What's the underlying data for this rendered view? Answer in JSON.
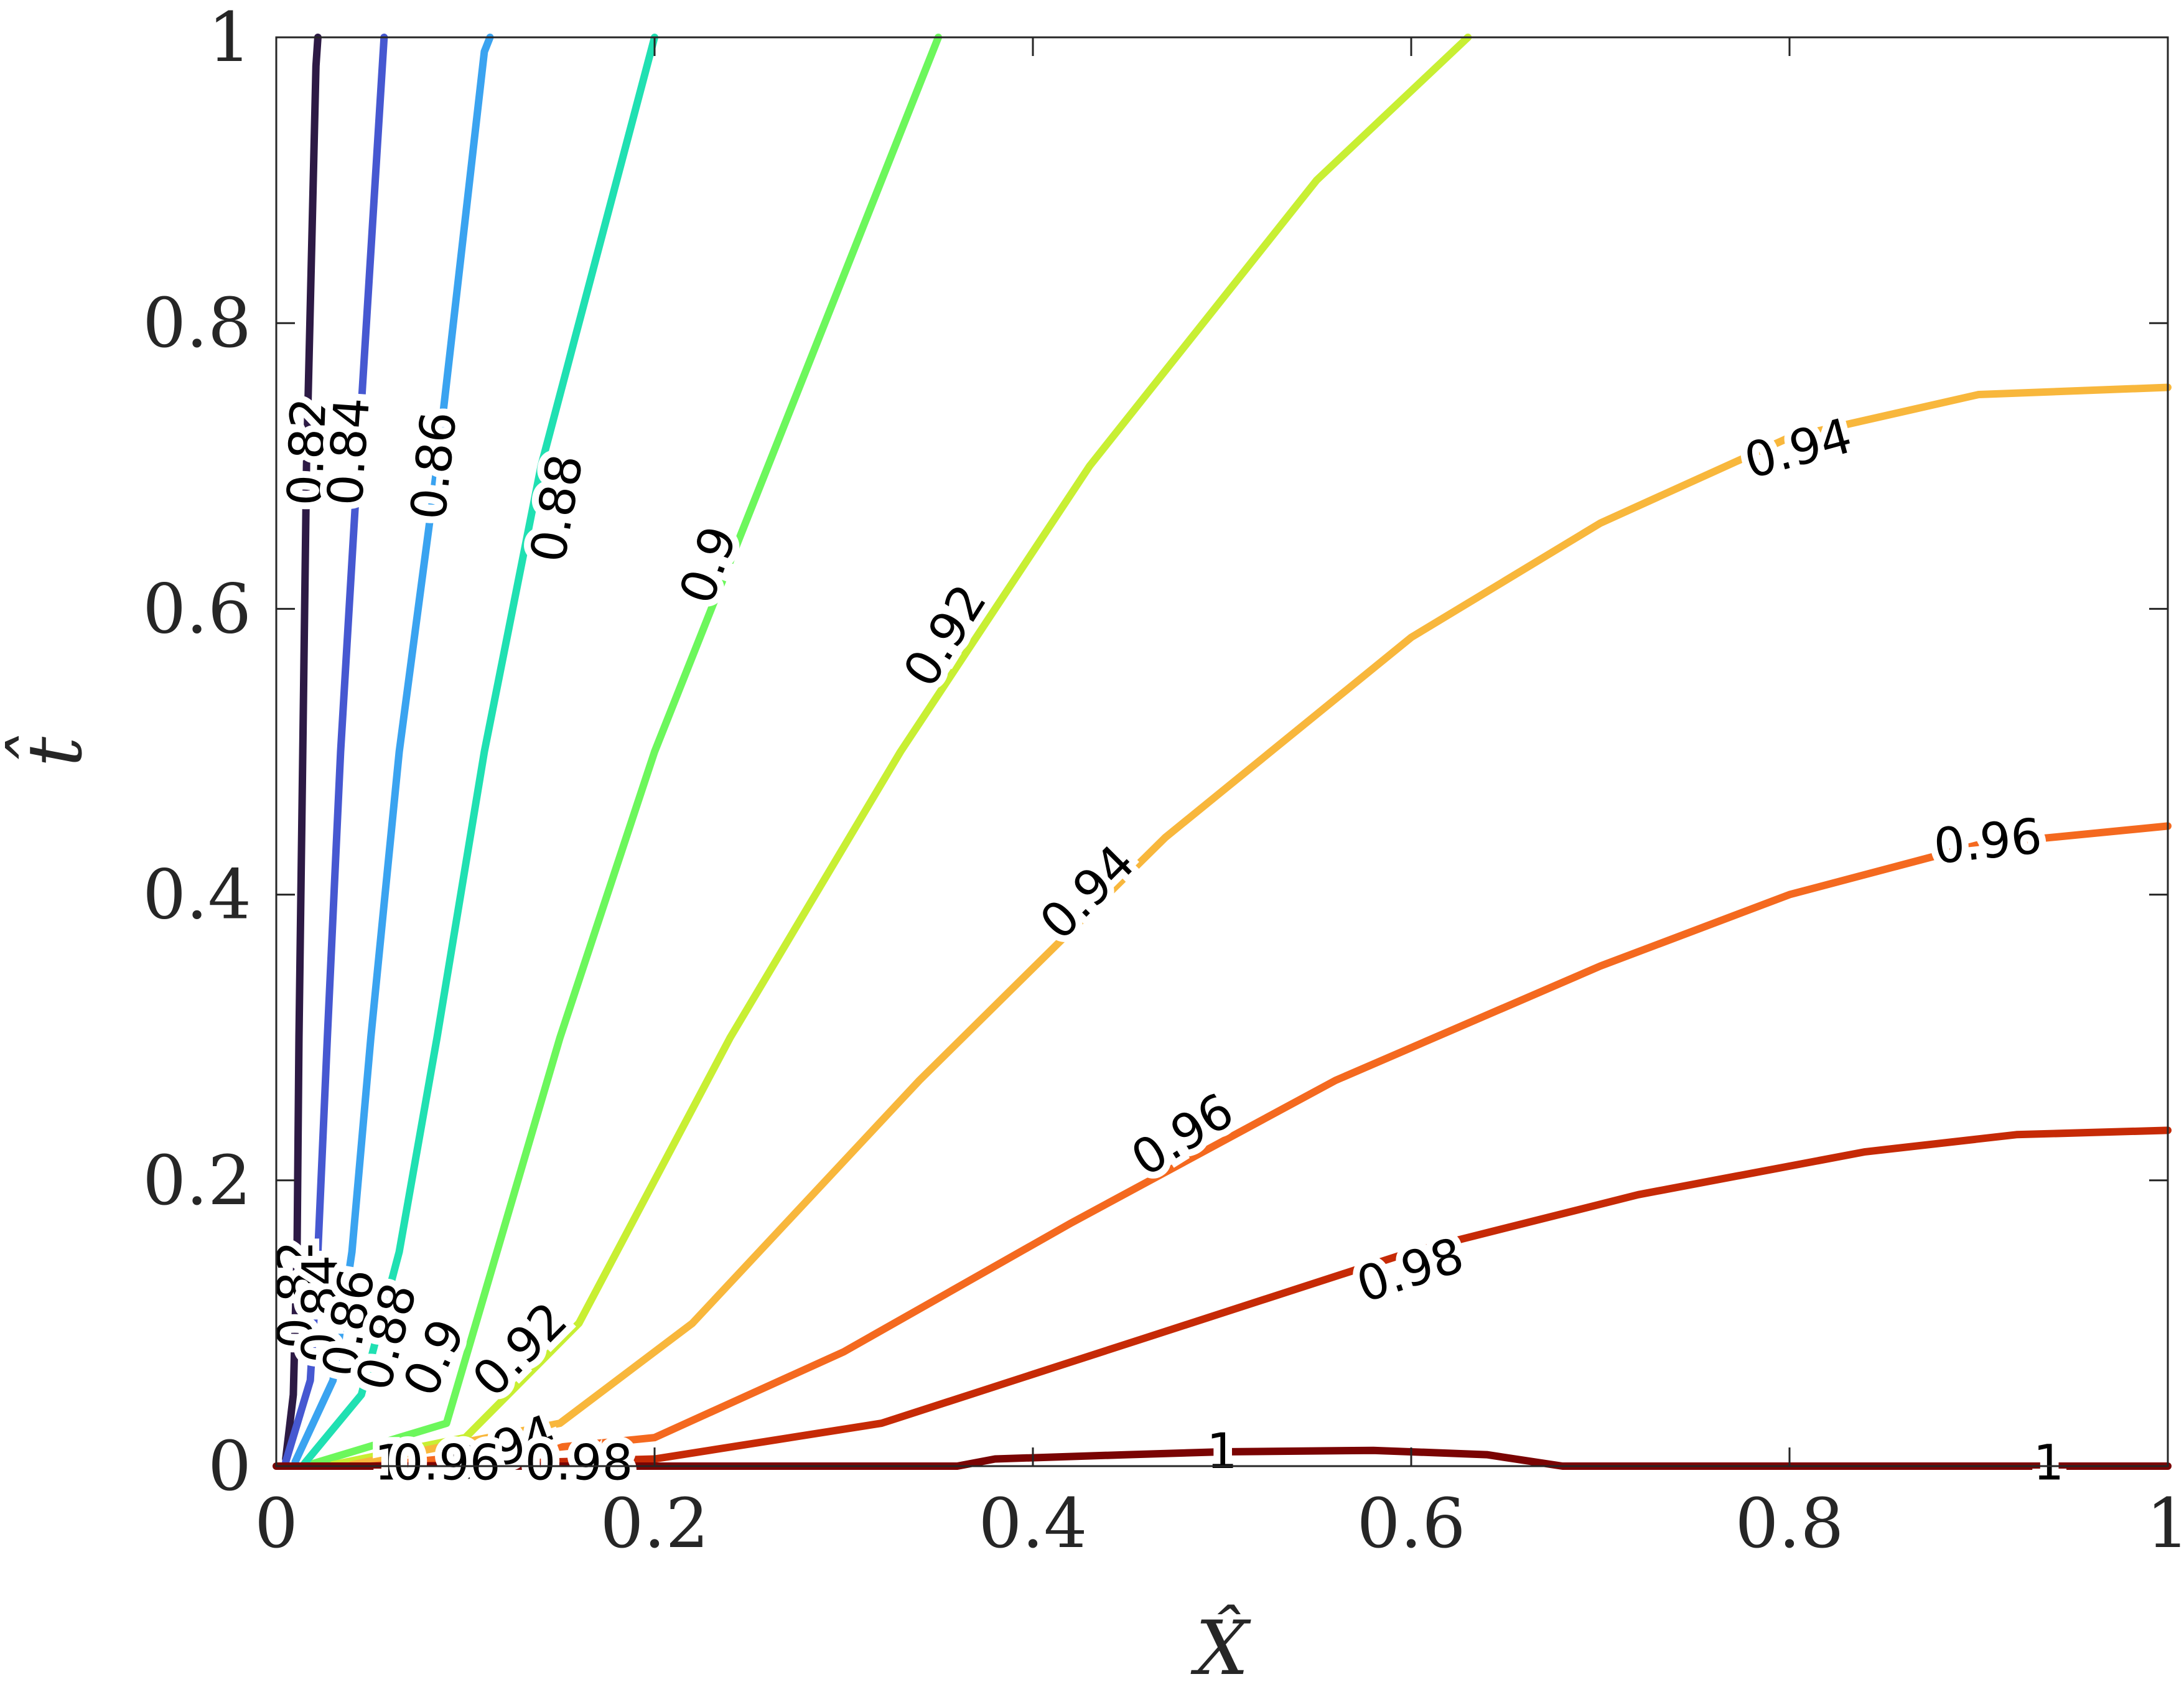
{
  "chart_data": {
    "type": "contour",
    "xlabel": "X̂",
    "ylabel": "t̂",
    "xlim": [
      0,
      1
    ],
    "ylim": [
      0,
      1
    ],
    "x_ticks": [
      0,
      0.2,
      0.4,
      0.6,
      0.8,
      1
    ],
    "y_ticks": [
      0,
      0.2,
      0.4,
      0.6,
      0.8,
      1
    ],
    "x_tick_labels": [
      "0",
      "0.2",
      "0.4",
      "0.6",
      "0.8",
      "1"
    ],
    "y_tick_labels": [
      "0",
      "0.2",
      "0.4",
      "0.6",
      "0.8",
      "1"
    ],
    "grid": false,
    "levels": [
      {
        "level": 0.82,
        "label": "0.82",
        "color": "#2d1a45",
        "points": [
          [
            0.005,
            0.005
          ],
          [
            0.009,
            0.05
          ],
          [
            0.011,
            0.15
          ],
          [
            0.012,
            0.3
          ],
          [
            0.014,
            0.5
          ],
          [
            0.016,
            0.7
          ],
          [
            0.021,
            0.98
          ],
          [
            0.022,
            1.0
          ]
        ]
      },
      {
        "level": 0.84,
        "label": "0.84",
        "color": "#4658d1",
        "points": [
          [
            0.005,
            0.003
          ],
          [
            0.018,
            0.06
          ],
          [
            0.022,
            0.15
          ],
          [
            0.027,
            0.3
          ],
          [
            0.034,
            0.5
          ],
          [
            0.043,
            0.7
          ],
          [
            0.057,
            1.0
          ]
        ]
      },
      {
        "level": 0.86,
        "label": "0.86",
        "color": "#3aa3f0",
        "points": [
          [
            0.01,
            0.003
          ],
          [
            0.03,
            0.06
          ],
          [
            0.04,
            0.15
          ],
          [
            0.05,
            0.3
          ],
          [
            0.065,
            0.5
          ],
          [
            0.085,
            0.7
          ],
          [
            0.11,
            0.99
          ],
          [
            0.113,
            1.0
          ]
        ]
      },
      {
        "level": 0.88,
        "label": "0.88",
        "color": "#20e0b2",
        "points": [
          [
            0.015,
            0.002
          ],
          [
            0.045,
            0.05
          ],
          [
            0.065,
            0.15
          ],
          [
            0.085,
            0.3
          ],
          [
            0.11,
            0.5
          ],
          [
            0.14,
            0.7
          ],
          [
            0.2,
            1.0
          ]
        ]
      },
      {
        "level": 0.9,
        "label": "0.9",
        "color": "#6cf75c",
        "points": [
          [
            0.02,
            0.002
          ],
          [
            0.09,
            0.03
          ],
          [
            0.11,
            0.12
          ],
          [
            0.15,
            0.3
          ],
          [
            0.2,
            0.5
          ],
          [
            0.26,
            0.7
          ],
          [
            0.35,
            1.0
          ]
        ]
      },
      {
        "level": 0.92,
        "label": "0.92",
        "color": "#c8ef33",
        "points": [
          [
            0.03,
            0.001
          ],
          [
            0.1,
            0.02
          ],
          [
            0.16,
            0.1
          ],
          [
            0.24,
            0.3
          ],
          [
            0.33,
            0.5
          ],
          [
            0.43,
            0.7
          ],
          [
            0.55,
            0.9
          ],
          [
            0.63,
            1.0
          ]
        ]
      },
      {
        "level": 0.94,
        "label": "0.94",
        "color": "#f8b73c",
        "points": [
          [
            0.04,
            0.001
          ],
          [
            0.15,
            0.03
          ],
          [
            0.22,
            0.1
          ],
          [
            0.34,
            0.27
          ],
          [
            0.47,
            0.44
          ],
          [
            0.6,
            0.58
          ],
          [
            0.7,
            0.66
          ],
          [
            0.8,
            0.72
          ],
          [
            0.9,
            0.75
          ],
          [
            1.0,
            0.755
          ]
        ]
      },
      {
        "level": 0.96,
        "label": "0.96",
        "color": "#f4691f",
        "points": [
          [
            0.05,
            0.0
          ],
          [
            0.2,
            0.02
          ],
          [
            0.3,
            0.08
          ],
          [
            0.42,
            0.17
          ],
          [
            0.56,
            0.27
          ],
          [
            0.7,
            0.35
          ],
          [
            0.8,
            0.4
          ],
          [
            0.9,
            0.435
          ],
          [
            1.0,
            0.448
          ]
        ]
      },
      {
        "level": 0.98,
        "label": "0.98",
        "color": "#c62a06",
        "points": [
          [
            0.07,
            0.0
          ],
          [
            0.2,
            0.005
          ],
          [
            0.32,
            0.03
          ],
          [
            0.46,
            0.09
          ],
          [
            0.6,
            0.15
          ],
          [
            0.72,
            0.19
          ],
          [
            0.84,
            0.22
          ],
          [
            0.92,
            0.232
          ],
          [
            1.0,
            0.235
          ]
        ]
      },
      {
        "level": 1.0,
        "label": "1",
        "color": "#7a0403",
        "points": [
          [
            0.0,
            0.0
          ],
          [
            0.36,
            0.0
          ],
          [
            0.38,
            0.005
          ],
          [
            0.45,
            0.008
          ],
          [
            0.5,
            0.01
          ],
          [
            0.58,
            0.011
          ],
          [
            0.64,
            0.008
          ],
          [
            0.68,
            0.0
          ],
          [
            1.0,
            0.0
          ]
        ]
      }
    ],
    "contour_labels": [
      {
        "text": "0.82",
        "x": 0.018,
        "y": 0.71,
        "angle": -88
      },
      {
        "text": "0.84",
        "x": 0.04,
        "y": 0.71,
        "angle": -86
      },
      {
        "text": "0.86",
        "x": 0.085,
        "y": 0.7,
        "angle": -84
      },
      {
        "text": "0.88",
        "x": 0.15,
        "y": 0.67,
        "angle": -80
      },
      {
        "text": "0.9",
        "x": 0.23,
        "y": 0.63,
        "angle": -70
      },
      {
        "text": "0.92",
        "x": 0.355,
        "y": 0.58,
        "angle": -58
      },
      {
        "text": "0.94",
        "x": 0.805,
        "y": 0.71,
        "angle": -15
      },
      {
        "text": "0.94",
        "x": 0.43,
        "y": 0.4,
        "angle": -45
      },
      {
        "text": "0.96",
        "x": 0.905,
        "y": 0.435,
        "angle": -6
      },
      {
        "text": "0.96",
        "x": 0.48,
        "y": 0.23,
        "angle": -32
      },
      {
        "text": "0.98",
        "x": 0.6,
        "y": 0.135,
        "angle": -18
      },
      {
        "text": "1",
        "x": 0.5,
        "y": 0.008,
        "angle": 0
      },
      {
        "text": "1",
        "x": 0.937,
        "y": 0.0,
        "angle": 0
      },
      {
        "text": "0.82",
        "x": 0.012,
        "y": 0.12,
        "angle": -90
      },
      {
        "text": "0.84",
        "x": 0.025,
        "y": 0.11,
        "angle": -90
      },
      {
        "text": "0.86",
        "x": 0.04,
        "y": 0.1,
        "angle": -80
      },
      {
        "text": "0.88",
        "x": 0.06,
        "y": 0.09,
        "angle": -75
      },
      {
        "text": "0.9",
        "x": 0.085,
        "y": 0.075,
        "angle": -65
      },
      {
        "text": "0.92",
        "x": 0.13,
        "y": 0.08,
        "angle": -45
      },
      {
        "text": "0.94",
        "x": 0.12,
        "y": 0.01,
        "angle": -20
      },
      {
        "text": "1",
        "x": 0.06,
        "y": 0.0,
        "angle": 0
      },
      {
        "text": "0.96",
        "x": 0.09,
        "y": 0.0,
        "angle": 0
      },
      {
        "text": "0.98",
        "x": 0.16,
        "y": 0.0,
        "angle": 0
      }
    ]
  }
}
